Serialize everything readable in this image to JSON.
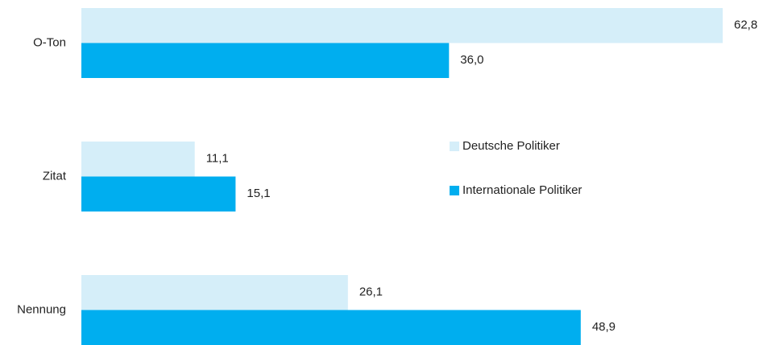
{
  "chart_data": {
    "type": "barh",
    "categories": [
      "O-Ton",
      "Zitat",
      "Nennung"
    ],
    "series": [
      {
        "name": "Deutsche Politiker",
        "color": "#d5eef9",
        "values": [
          62.8,
          11.1,
          26.1
        ],
        "value_labels": [
          "62,8",
          "11,1",
          "26,1"
        ]
      },
      {
        "name": "Internationale Politiker",
        "color": "#00aeef",
        "values": [
          36.0,
          15.1,
          48.9
        ],
        "value_labels": [
          "36,0",
          "15,1",
          "48,9"
        ]
      }
    ],
    "legend": "center"
  }
}
